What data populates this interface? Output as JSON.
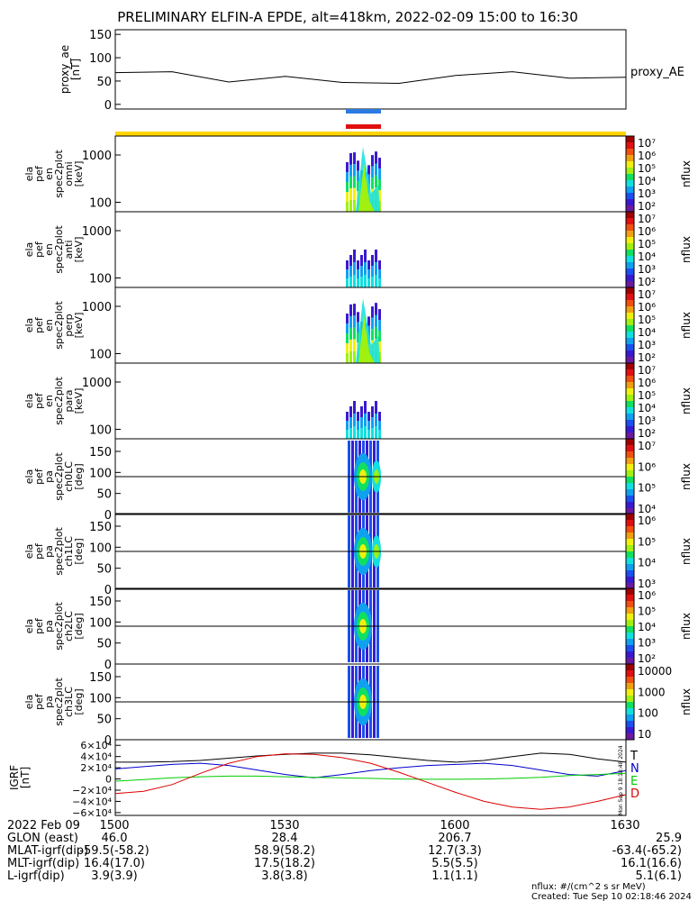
{
  "title": "PRELIMINARY ELFIN-A EPDE, alt=418km, 2022-02-09 15:00 to 16:30",
  "chart_data": [
    {
      "type": "line",
      "panel": "proxy_ae",
      "ylabel": [
        "proxy_ae",
        "[nT]"
      ],
      "yticks": [
        0,
        50,
        100,
        150
      ],
      "ylim": [
        -10,
        160
      ],
      "series": [
        {
          "name": "proxy_AE",
          "x": [
            0,
            10,
            20,
            30,
            40,
            50,
            60,
            70,
            80,
            90
          ],
          "values": [
            68,
            70,
            48,
            60,
            47,
            45,
            62,
            70,
            56,
            58
          ]
        }
      ]
    },
    {
      "type": "heatmap",
      "panel": "omni",
      "ylabel": [
        "ela",
        "pef",
        "en",
        "spec2plot",
        "omni",
        "[keV]"
      ],
      "yticks": [
        100,
        1000
      ],
      "cbar_ticks": [
        "10⁷",
        "10⁶",
        "10⁵",
        "10⁴",
        "10³",
        "10²"
      ],
      "cbar_label": "nflux"
    },
    {
      "type": "heatmap",
      "panel": "anti",
      "ylabel": [
        "ela",
        "pef",
        "en",
        "spec2plot",
        "anti",
        "[keV]"
      ],
      "yticks": [
        100,
        1000
      ],
      "cbar_ticks": [
        "10⁷",
        "10⁶",
        "10⁵",
        "10⁴",
        "10³",
        "10²"
      ],
      "cbar_label": "nflux"
    },
    {
      "type": "heatmap",
      "panel": "perp",
      "ylabel": [
        "ela",
        "pef",
        "en",
        "spec2plot",
        "perp",
        "[keV]"
      ],
      "yticks": [
        100,
        1000
      ],
      "cbar_ticks": [
        "10⁷",
        "10⁶",
        "10⁵",
        "10⁴",
        "10³",
        "10²"
      ],
      "cbar_label": "nflux"
    },
    {
      "type": "heatmap",
      "panel": "para",
      "ylabel": [
        "ela",
        "pef",
        "en",
        "spec2plot",
        "para",
        "[keV]"
      ],
      "yticks": [
        100,
        1000
      ],
      "cbar_ticks": [
        "10⁷",
        "10⁶",
        "10⁵",
        "10⁴",
        "10³",
        "10²"
      ],
      "cbar_label": "nflux"
    },
    {
      "type": "heatmap",
      "panel": "ch0LC",
      "ylabel": [
        "ela",
        "pef",
        "pa",
        "spec2plot",
        "ch0LC",
        "[deg]"
      ],
      "yticks": [
        0,
        50,
        100,
        150
      ],
      "cbar_ticks": [
        "10⁷",
        "10⁶",
        "10⁵",
        "10⁴"
      ],
      "cbar_label": "nflux"
    },
    {
      "type": "heatmap",
      "panel": "ch1LC",
      "ylabel": [
        "ela",
        "pef",
        "pa",
        "spec2plot",
        "ch1LC",
        "[deg]"
      ],
      "yticks": [
        0,
        50,
        100,
        150
      ],
      "cbar_ticks": [
        "10⁶",
        "10⁵",
        "10⁴",
        "10³"
      ],
      "cbar_label": "nflux"
    },
    {
      "type": "heatmap",
      "panel": "ch2LC",
      "ylabel": [
        "ela",
        "pef",
        "pa",
        "spec2plot",
        "ch2LC",
        "[deg]"
      ],
      "yticks": [
        0,
        50,
        100,
        150
      ],
      "cbar_ticks": [
        "10⁶",
        "10⁵",
        "10⁴",
        "10³",
        "10²"
      ],
      "cbar_label": "nflux"
    },
    {
      "type": "heatmap",
      "panel": "ch3LC",
      "ylabel": [
        "ela",
        "pef",
        "pa",
        "spec2plot",
        "ch3LC",
        "[deg]"
      ],
      "yticks": [
        0,
        50,
        100,
        150
      ],
      "cbar_ticks": [
        "10000",
        "1000",
        "100",
        "10"
      ],
      "cbar_label": "nflux"
    },
    {
      "type": "line",
      "panel": "IGRF",
      "ylabel": [
        "IGRF",
        "[nT]"
      ],
      "yticks_text": [
        "6×10⁴",
        "4×10⁴",
        "2×10⁴",
        "0",
        "−2×10⁴",
        "−4×10⁴",
        "−6×10⁴"
      ],
      "yticks": [
        60000,
        40000,
        20000,
        0,
        -20000,
        -40000,
        -60000
      ],
      "ylim": [
        -65000,
        70000
      ],
      "x": [
        0,
        5,
        10,
        15,
        20,
        25,
        30,
        35,
        40,
        45,
        50,
        55,
        60,
        65,
        70,
        75,
        80,
        85,
        90
      ],
      "series": [
        {
          "name": "T",
          "color": "#000000",
          "values": [
            30000,
            30000,
            31000,
            33000,
            37000,
            41000,
            44000,
            46000,
            46000,
            43000,
            38000,
            33000,
            30000,
            33000,
            40000,
            46000,
            44000,
            36000,
            30000
          ]
        },
        {
          "name": "N",
          "color": "#0000cc",
          "values": [
            18000,
            22000,
            26000,
            28000,
            24000,
            16000,
            8000,
            2000,
            8000,
            15000,
            20000,
            24000,
            26000,
            28000,
            24000,
            16000,
            8000,
            5000,
            15000
          ]
        },
        {
          "name": "E",
          "color": "#00cc00",
          "values": [
            -4000,
            -1000,
            2000,
            4000,
            5000,
            5000,
            4000,
            3000,
            2000,
            1000,
            0,
            -500,
            -500,
            0,
            1000,
            3000,
            6000,
            8000,
            10000
          ]
        },
        {
          "name": "D",
          "color": "#dd0000",
          "values": [
            -26000,
            -22000,
            -10000,
            10000,
            28000,
            40000,
            45000,
            44000,
            38000,
            28000,
            12000,
            -6000,
            -24000,
            -40000,
            -50000,
            -54000,
            -50000,
            -40000,
            -28000
          ]
        }
      ]
    }
  ],
  "time_ticks": [
    "1500",
    "1530",
    "1600",
    "1630"
  ],
  "ephemeris": {
    "date": "2022 Feb 09",
    "rows": [
      {
        "label": "GLON (east)",
        "v": [
          "46.0",
          "28.4",
          "206.7",
          "25.9"
        ]
      },
      {
        "label": "MLAT-igrf(dip)",
        "v": [
          "-59.5(-58.2)",
          "58.9(58.2)",
          "12.7(3.3)",
          "-63.4(-65.2)"
        ]
      },
      {
        "label": "MLT-igrf(dip)",
        "v": [
          "16.4(17.0)",
          "17.5(18.2)",
          "5.5(5.5)",
          "16.1(16.6)"
        ]
      },
      {
        "label": "L-igrf(dip)",
        "v": [
          "3.9(3.9)",
          "3.8(3.8)",
          "1.1(1.1)",
          "5.1(6.1)"
        ]
      }
    ]
  },
  "footer": {
    "units": "nflux: #/(cm^2 s sr MeV)",
    "created": "Created: Tue Sep 10 02:18:46 2024"
  },
  "side_note": "Mon Sep  9 18:18:48 2024",
  "colors": {
    "bar_yellow": "#ffd400",
    "bar_blue": "#2a7be0",
    "bar_red": "#e01010"
  }
}
